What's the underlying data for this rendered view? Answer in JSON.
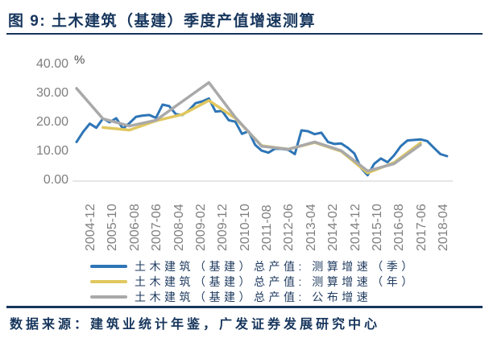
{
  "header": {
    "title": "图 9:  土木建筑（基建）季度产值增速测算"
  },
  "footer": {
    "source": "数据来源：建筑业统计年鉴，广发证券发展研究中心"
  },
  "colors": {
    "navy_text": "#17365d",
    "axis_label_gray": "#7f7f7f",
    "baseline_gray": "#d6d6d6",
    "series_blue": "#2e75b6",
    "series_yellow": "#e0c75f",
    "series_gray": "#a9a9a9"
  },
  "chart_data": {
    "type": "line",
    "title": "图 9: 土木建筑（基建）季度产值增速测算",
    "unit_label": "%",
    "xlabel": "",
    "ylabel": "%",
    "ylim": [
      0,
      40
    ],
    "ytick_labels": [
      "40.00",
      "30.00",
      "20.00",
      "10.00",
      "0.00"
    ],
    "ytick_values": [
      40,
      30,
      20,
      10,
      0
    ],
    "grid": "zero-baseline-only",
    "legend_position": "bottom",
    "xtick_labels": [
      "2004-12",
      "2005-10",
      "2006-08",
      "2007-06",
      "2008-04",
      "2009-02",
      "2009-12",
      "2010-10",
      "2011-08",
      "2012-06",
      "2013-04",
      "2014-02",
      "2014-12",
      "2015-10",
      "2016-08",
      "2017-06",
      "2018-04"
    ],
    "x_months_per_tick": 10,
    "x_start": "2004-12",
    "series": [
      {
        "key": "quarterly-estimated-growth",
        "name": "土木建筑（基建）总产值: 测算增速（季）",
        "color": "#2e75b6",
        "frequency": "quarterly",
        "dates": [
          "2004-12",
          "2005-03",
          "2005-06",
          "2005-09",
          "2005-12",
          "2006-03",
          "2006-06",
          "2006-09",
          "2006-12",
          "2007-03",
          "2007-06",
          "2007-09",
          "2007-12",
          "2008-03",
          "2008-06",
          "2008-09",
          "2008-12",
          "2009-03",
          "2009-06",
          "2009-09",
          "2009-12",
          "2010-03",
          "2010-06",
          "2010-09",
          "2010-12",
          "2011-03",
          "2011-06",
          "2011-09",
          "2011-12",
          "2012-03",
          "2012-06",
          "2012-09",
          "2012-12",
          "2013-03",
          "2013-06",
          "2013-09",
          "2013-12",
          "2014-03",
          "2014-06",
          "2014-09",
          "2014-12",
          "2015-03",
          "2015-06",
          "2015-09",
          "2015-12",
          "2016-03",
          "2016-06",
          "2016-09",
          "2016-12",
          "2017-03",
          "2017-06",
          "2017-09",
          "2017-12",
          "2018-03",
          "2018-06",
          "2018-09",
          "2018-12"
        ],
        "values": [
          13.5,
          17.0,
          19.8,
          18.4,
          21.6,
          20.3,
          21.7,
          18.1,
          20.0,
          22.2,
          22.6,
          22.8,
          21.8,
          26.4,
          25.9,
          23.1,
          22.8,
          24.5,
          26.9,
          27.5,
          28.5,
          24.0,
          24.2,
          21.0,
          20.5,
          16.3,
          17.2,
          12.5,
          10.5,
          9.8,
          11.2,
          11.1,
          10.8,
          9.3,
          17.5,
          17.2,
          16.2,
          16.7,
          13.5,
          12.8,
          13.0,
          11.5,
          9.5,
          4.5,
          2.0,
          6.0,
          7.8,
          6.5,
          8.9,
          12.0,
          14.0,
          14.2,
          14.4,
          13.8,
          11.5,
          9.3,
          8.6
        ]
      },
      {
        "key": "annual-estimated-growth",
        "name": "土木建筑（基建）总产值: 测算增速（年）",
        "color": "#e0c75f",
        "frequency": "annual",
        "dates": [
          "2005-12",
          "2006-12",
          "2007-12",
          "2008-12",
          "2009-12",
          "2010-12",
          "2011-12",
          "2012-12",
          "2013-12",
          "2014-12",
          "2015-12",
          "2016-12",
          "2017-12"
        ],
        "values": [
          18.5,
          17.6,
          20.8,
          23.0,
          27.8,
          21.7,
          12.2,
          11.0,
          13.3,
          10.3,
          2.8,
          6.4,
          13.2
        ]
      },
      {
        "key": "published-growth",
        "name": "土木建筑（基建）总产值: 公布增速",
        "color": "#a9a9a9",
        "frequency": "annual",
        "dates": [
          "2004-12",
          "2005-12",
          "2006-12",
          "2007-12",
          "2008-12",
          "2009-12",
          "2010-12",
          "2011-12",
          "2012-12",
          "2013-12",
          "2014-12",
          "2015-12",
          "2016-12",
          "2017-12"
        ],
        "values": [
          32.0,
          21.5,
          19.0,
          21.0,
          27.5,
          34.0,
          22.0,
          12.0,
          11.0,
          13.5,
          10.5,
          3.5,
          6.0,
          12.5
        ]
      }
    ]
  }
}
